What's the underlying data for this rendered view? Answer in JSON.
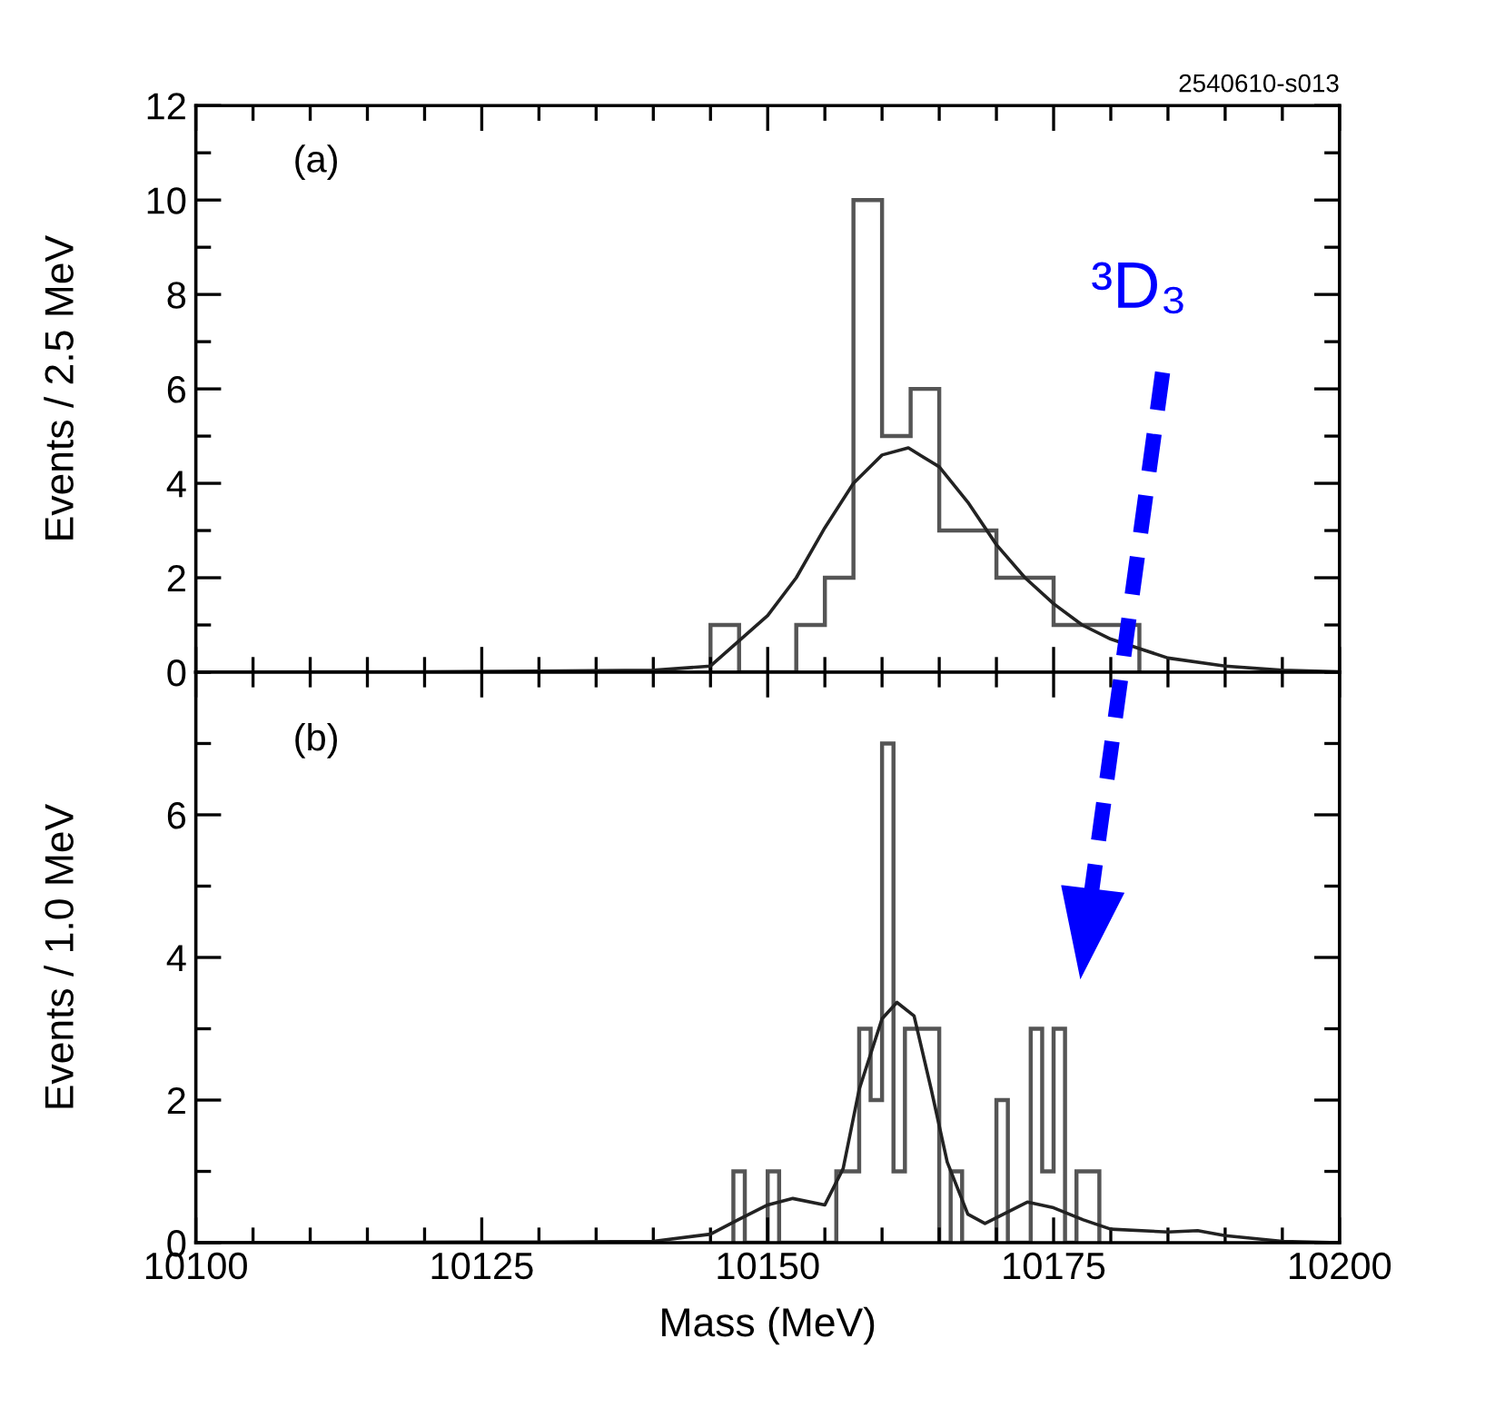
{
  "chart_data": [
    {
      "type": "histogram",
      "ylabel": "Events / 2.5 MeV",
      "xlim": [
        10100,
        10200
      ],
      "xticks": [
        10100,
        10125,
        10150,
        10175,
        10200
      ],
      "ylim": [
        0,
        12
      ],
      "yticks": [
        0,
        2,
        4,
        6,
        8,
        10,
        12
      ],
      "tick_labels": "y",
      "grid": false,
      "legend": false,
      "annotations": [
        "(a)",
        "2540610-s013"
      ],
      "series": [
        {
          "color": "#555555",
          "bins": [
            10145,
            10147.5,
            10150,
            10152.5,
            10155,
            10157.5,
            10160,
            10162.5,
            10165,
            10167.5,
            10170,
            10172.5,
            10175,
            10177.5,
            10180,
            10182.5
          ],
          "values": [
            1,
            0,
            0,
            1,
            2,
            10,
            5,
            6,
            3,
            3,
            2,
            2,
            1,
            1,
            1
          ]
        },
        {
          "type": "line",
          "color": "#222222",
          "x": [
            10100,
            10120,
            10130,
            10140,
            10145,
            10150,
            10152.5,
            10155,
            10157.5,
            10160,
            10162.3,
            10165,
            10167.5,
            10170,
            10172.5,
            10175,
            10177.5,
            10180,
            10182.5,
            10185,
            10190,
            10195,
            10200
          ],
          "values": [
            0,
            0.01,
            0.02,
            0.04,
            0.13,
            1.2,
            2.0,
            3.06,
            4.0,
            4.6,
            4.75,
            4.35,
            3.6,
            2.7,
            2.0,
            1.45,
            1.0,
            0.7,
            0.5,
            0.3,
            0.13,
            0.04,
            0.01
          ]
        }
      ]
    },
    {
      "type": "histogram",
      "xlabel": "Mass (MeV)",
      "ylabel": "Events / 1.0 MeV",
      "xlim": [
        10100,
        10200
      ],
      "xticks": [
        10100,
        10125,
        10150,
        10175,
        10200
      ],
      "ylim": [
        0,
        8
      ],
      "yticks": [
        0,
        2,
        4,
        6
      ],
      "grid": false,
      "legend": false,
      "annotations": [
        "(b)",
        "³D₃"
      ],
      "series": [
        {
          "color": "#555555",
          "bins": [
            10147,
            10148,
            10149,
            10150,
            10151,
            10152,
            10153,
            10154,
            10155,
            10156,
            10157,
            10158,
            10159,
            10160,
            10161,
            10162,
            10163,
            10164,
            10165,
            10166,
            10167,
            10168,
            10169,
            10170,
            10171,
            10172,
            10173,
            10174,
            10175,
            10176,
            10177,
            10178,
            10179
          ],
          "values": [
            1,
            0,
            0,
            1,
            0,
            0,
            0,
            0,
            0,
            1,
            1,
            3,
            2,
            7,
            1,
            3,
            3,
            3,
            0,
            1,
            0,
            0,
            0,
            2,
            0,
            0,
            3,
            1,
            3,
            0,
            1,
            1
          ]
        },
        {
          "type": "line",
          "color": "#222222",
          "x": [
            10100,
            10130,
            10140,
            10145,
            10147.4,
            10150,
            10152.2,
            10155,
            10156.6,
            10158,
            10160,
            10161.3,
            10162.8,
            10164.3,
            10165.7,
            10167.5,
            10169,
            10172.7,
            10175,
            10177.6,
            10180,
            10185,
            10187.6,
            10190,
            10195,
            10200
          ],
          "values": [
            0,
            0.01,
            0.02,
            0.12,
            0.32,
            0.53,
            0.62,
            0.53,
            1.04,
            2.15,
            3.14,
            3.37,
            3.18,
            2.15,
            1.13,
            0.4,
            0.27,
            0.57,
            0.49,
            0.32,
            0.19,
            0.15,
            0.17,
            0.1,
            0.02,
            0
          ]
        }
      ]
    }
  ]
}
